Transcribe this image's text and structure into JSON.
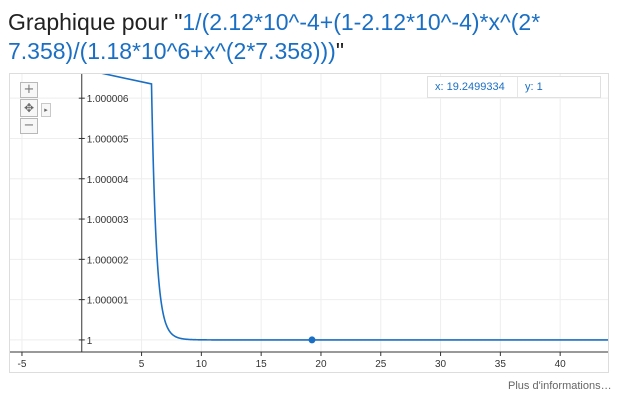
{
  "title": {
    "prefix": "Graphique pour \"",
    "formula_line1": "1/(2.12*10^-4+(1-2.12*10^-4)*x^(2*",
    "formula_line2": "7.358)/(1.18*10^6+x^(2*7.358)))",
    "suffix": "\""
  },
  "controls": {
    "zoom_in": "+",
    "zoom_out": "−",
    "pan": "✥",
    "pan_arrow": "▸"
  },
  "readout": {
    "x_label": "x: 19.2499334",
    "y_label": "y: 1"
  },
  "more_info": "Plus d'informations…",
  "colors": {
    "curve": "#1a6fc4",
    "grid": "#eeeeee",
    "axis": "#333333"
  },
  "chart_data": {
    "type": "line",
    "function": "1/(2.12*10^-4+(1-2.12*10^-4)*x^(2*7.358)/(1.18*10^6+x^(2*7.358)))",
    "params": {
      "a": 0.000212,
      "p": 14.716,
      "b": 1180000
    },
    "xlim": [
      -6,
      44
    ],
    "ylim": [
      0.9999997,
      1.0000066
    ],
    "x_ticks": [
      -5,
      5,
      10,
      15,
      20,
      25,
      30,
      35,
      40
    ],
    "y_ticks": [
      {
        "value": 1.0,
        "label": "1"
      },
      {
        "value": 1.000001,
        "label": "1.000001"
      },
      {
        "value": 1.000002,
        "label": "1.000002"
      },
      {
        "value": 1.000003,
        "label": "1.000003"
      },
      {
        "value": 1.000004,
        "label": "1.000004"
      },
      {
        "value": 1.000005,
        "label": "1.000005"
      },
      {
        "value": 1.000006,
        "label": "1.000006"
      }
    ],
    "marker": {
      "x": 19.2499334,
      "y": 1
    },
    "grid": true
  }
}
